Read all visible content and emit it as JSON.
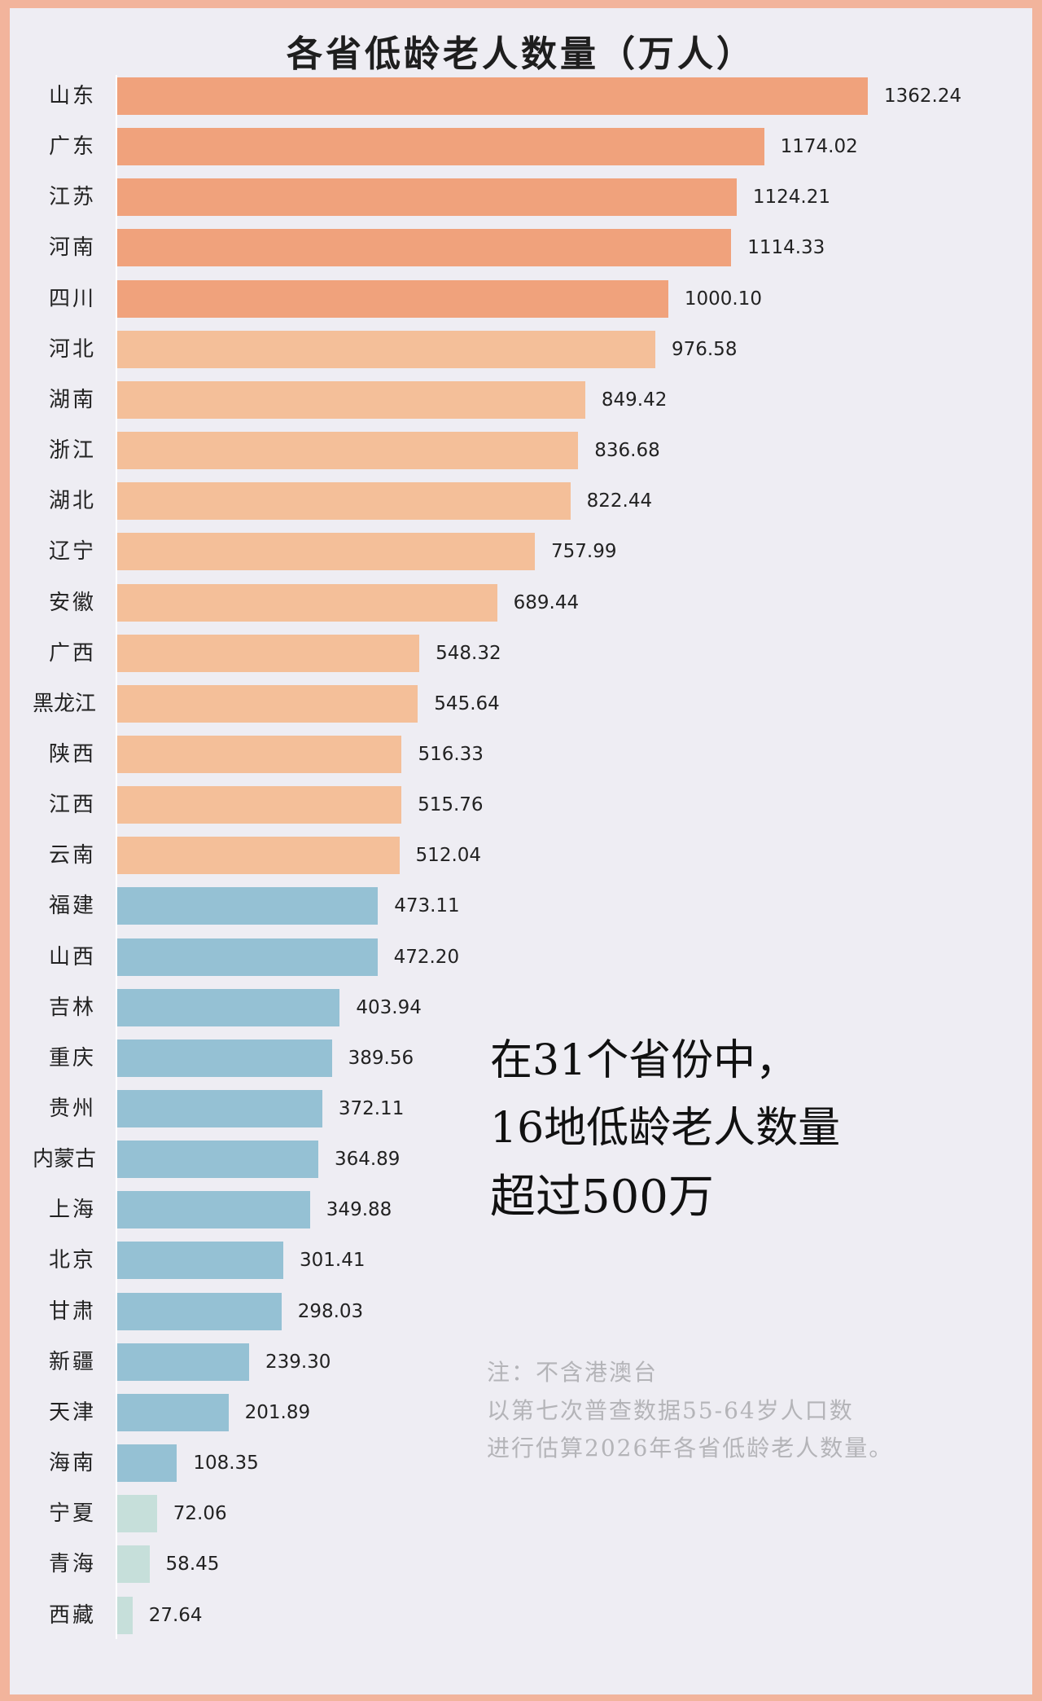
{
  "chart_data": {
    "type": "bar",
    "orientation": "horizontal",
    "title": "各省低龄老人数量（万人）",
    "categories": [
      "山东",
      "广东",
      "江苏",
      "河南",
      "四川",
      "河北",
      "湖南",
      "浙江",
      "湖北",
      "辽宁",
      "安徽",
      "广西",
      "黑龙江",
      "陕西",
      "江西",
      "云南",
      "福建",
      "山西",
      "吉林",
      "重庆",
      "贵州",
      "内蒙古",
      "上海",
      "北京",
      "甘肃",
      "新疆",
      "天津",
      "海南",
      "宁夏",
      "青海",
      "西藏"
    ],
    "values": [
      1362.24,
      1174.02,
      1124.21,
      1114.33,
      1000.1,
      976.58,
      849.42,
      836.68,
      822.44,
      757.99,
      689.44,
      548.32,
      545.64,
      516.33,
      515.76,
      512.04,
      473.11,
      472.2,
      403.94,
      389.56,
      372.11,
      364.89,
      349.88,
      301.41,
      298.03,
      239.3,
      201.89,
      108.35,
      72.06,
      58.45,
      27.64
    ],
    "labels": [
      "1362.24",
      "1174.02",
      "1124.21",
      "1114.33",
      "1000.10",
      "976.58",
      "849.42",
      "836.68",
      "822.44",
      "757.99",
      "689.44",
      "548.32",
      "545.64",
      "516.33",
      "515.76",
      "512.04",
      "473.11",
      "472.20",
      "403.94",
      "389.56",
      "372.11",
      "364.89",
      "349.88",
      "301.41",
      "298.03",
      "239.30",
      "201.89",
      "108.35",
      "72.06",
      "58.45",
      "27.64"
    ],
    "xlim": [
      0,
      1400
    ],
    "grid": false,
    "colors": {
      "top": "#f0a27c",
      "above500": "#f4bf99",
      "mid": "#95c1d4",
      "low": "#c6dfda"
    }
  },
  "annotation": {
    "lines": [
      "在31个省份中，",
      "16地低龄老人数量",
      "超过500万"
    ]
  },
  "note": {
    "lines": [
      "注：不含港澳台",
      "以第七次普查数据55-64岁人口数",
      "进行估算2026年各省低龄老人数量。"
    ]
  }
}
